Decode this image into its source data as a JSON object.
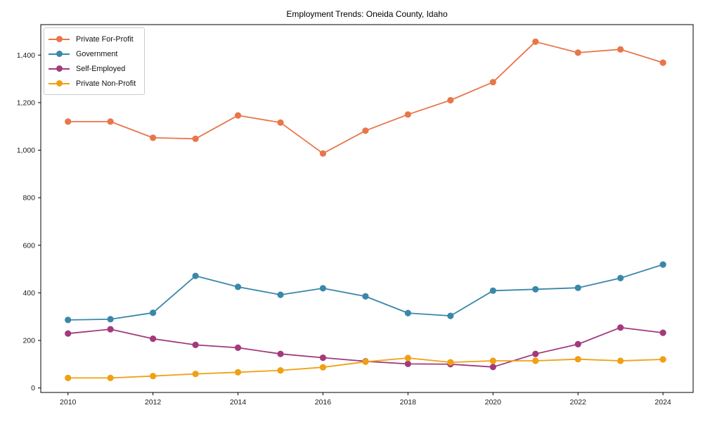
{
  "figure": {
    "background_color": "#ffffff",
    "frame_color": "#000000"
  },
  "chart_data": {
    "type": "line",
    "title": "Employment Trends: Oneida County, Idaho",
    "xlabel": "",
    "ylabel": "",
    "grid": false,
    "legend_position": "upper left",
    "marker": "circle",
    "x": [
      2010,
      2011,
      2012,
      2013,
      2014,
      2015,
      2016,
      2017,
      2018,
      2019,
      2020,
      2021,
      2022,
      2023,
      2024
    ],
    "x_ticks": [
      2010,
      2012,
      2014,
      2016,
      2018,
      2020,
      2022,
      2024
    ],
    "y_ticks": [
      0,
      200,
      400,
      600,
      800,
      1000,
      1200,
      1400
    ],
    "xlim": [
      2009.36,
      2024.71
    ],
    "ylim": [
      -19,
      1528
    ],
    "series": [
      {
        "name": "Private For-Profit",
        "color": "#e8764a",
        "values": [
          1120,
          1120,
          1052,
          1048,
          1146,
          1116,
          986,
          1082,
          1150,
          1210,
          1286,
          1456,
          1410,
          1424,
          1368
        ]
      },
      {
        "name": "Government",
        "color": "#3a87a9",
        "values": [
          286,
          289,
          316,
          471,
          425,
          392,
          419,
          385,
          315,
          303,
          409,
          415,
          421,
          462,
          519
        ]
      },
      {
        "name": "Self-Employed",
        "color": "#a23a7c",
        "values": [
          229,
          247,
          207,
          181,
          169,
          143,
          127,
          112,
          101,
          100,
          88,
          143,
          184,
          254,
          232
        ]
      },
      {
        "name": "Private Non-Profit",
        "color": "#f0a013",
        "values": [
          42,
          42,
          50,
          59,
          66,
          74,
          87,
          110,
          126,
          108,
          114,
          114,
          121,
          114,
          120
        ]
      }
    ]
  }
}
